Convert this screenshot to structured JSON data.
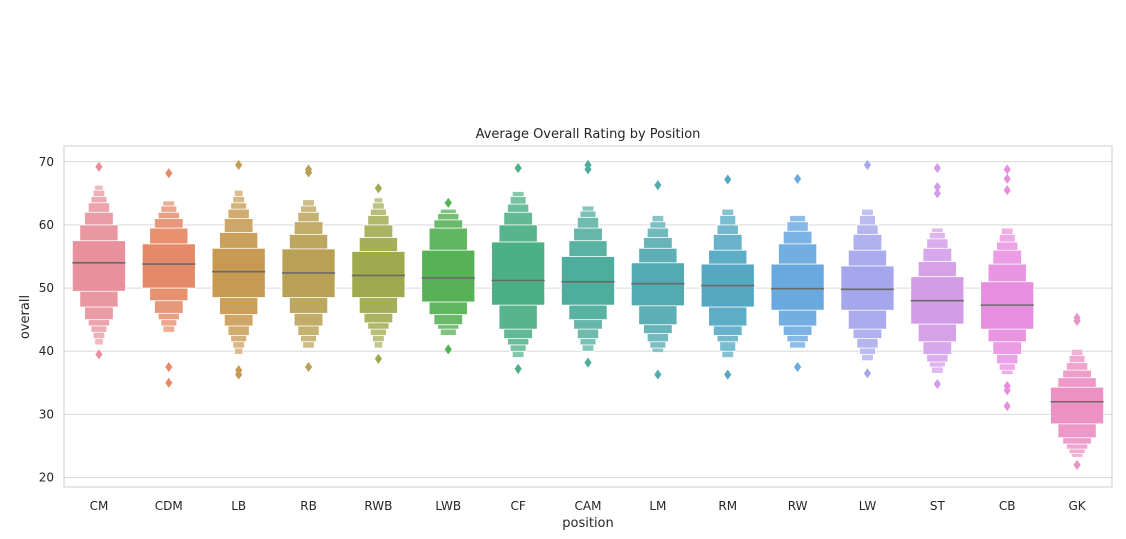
{
  "chart_data": {
    "type": "boxenplot",
    "title": "Average Overall Rating by Position",
    "xlabel": "position",
    "ylabel": "overall",
    "ylim": [
      18.5,
      72.5
    ],
    "yticks": [
      20,
      30,
      40,
      50,
      60,
      70
    ],
    "grid": true,
    "categories": [
      {
        "name": "CM",
        "color": "#e8909b",
        "median": 54.0,
        "boxes": [
          [
            49.5,
            57.5
          ],
          [
            47,
            60
          ],
          [
            45,
            62
          ],
          [
            44,
            63.5
          ],
          [
            43,
            64.5
          ],
          [
            42,
            65.5
          ],
          [
            41,
            66.3
          ]
        ],
        "outliers": [
          69.2,
          39.5
        ]
      },
      {
        "name": "CDM",
        "color": "#e58a68",
        "median": 53.8,
        "boxes": [
          [
            50,
            57
          ],
          [
            48,
            59.5
          ],
          [
            46,
            61
          ],
          [
            45,
            62
          ],
          [
            44,
            63
          ],
          [
            43,
            63.8
          ]
        ],
        "outliers": [
          68.2,
          37.5,
          35.0
        ]
      },
      {
        "name": "LB",
        "color": "#c79a52",
        "median": 52.6,
        "boxes": [
          [
            48.5,
            56.3
          ],
          [
            45.8,
            58.8
          ],
          [
            44,
            61
          ],
          [
            42.5,
            62.5
          ],
          [
            41.5,
            63.5
          ],
          [
            40.5,
            64.5
          ],
          [
            39.5,
            65.5
          ]
        ],
        "outliers": [
          69.5,
          37.0,
          36.3
        ]
      },
      {
        "name": "RB",
        "color": "#b8a154",
        "median": 52.4,
        "boxes": [
          [
            48.5,
            56.2
          ],
          [
            46,
            58.5
          ],
          [
            44,
            60.5
          ],
          [
            42.5,
            62
          ],
          [
            41.5,
            63
          ],
          [
            40.5,
            64
          ]
        ],
        "outliers": [
          68.8,
          68.3,
          37.5
        ]
      },
      {
        "name": "RWB",
        "color": "#9fa94d",
        "median": 52.0,
        "boxes": [
          [
            48.5,
            55.8
          ],
          [
            46,
            58
          ],
          [
            44.5,
            60
          ],
          [
            43.5,
            61.5
          ],
          [
            42.5,
            62.5
          ],
          [
            41.5,
            63.5
          ],
          [
            40.5,
            64.3
          ]
        ],
        "outliers": [
          65.8,
          38.8
        ]
      },
      {
        "name": "LWB",
        "color": "#57b157",
        "median": 51.6,
        "boxes": [
          [
            47.8,
            56.0
          ],
          [
            45.8,
            59.5
          ],
          [
            44.2,
            60.8
          ],
          [
            43.5,
            61.8
          ],
          [
            42.5,
            62.5
          ]
        ],
        "outliers": [
          63.5,
          40.3
        ]
      },
      {
        "name": "CF",
        "color": "#4caf86",
        "median": 51.2,
        "boxes": [
          [
            47.3,
            57.3
          ],
          [
            43.5,
            60
          ],
          [
            42,
            62
          ],
          [
            41,
            63.3
          ],
          [
            40,
            64.5
          ],
          [
            39,
            65.3
          ]
        ],
        "outliers": [
          69.0,
          37.2
        ]
      },
      {
        "name": "CAM",
        "color": "#4fad9d",
        "median": 51.0,
        "boxes": [
          [
            47.3,
            55
          ],
          [
            45,
            57.5
          ],
          [
            43.5,
            59.5
          ],
          [
            42,
            61.2
          ],
          [
            41,
            62.2
          ],
          [
            40,
            63
          ]
        ],
        "outliers": [
          69.5,
          68.8,
          38.2
        ]
      },
      {
        "name": "LM",
        "color": "#52abb0",
        "median": 50.7,
        "boxes": [
          [
            47.2,
            54
          ],
          [
            44.2,
            56.3
          ],
          [
            42.8,
            58
          ],
          [
            41.5,
            59.5
          ],
          [
            40.5,
            60.5
          ],
          [
            39.8,
            61.5
          ]
        ],
        "outliers": [
          66.3,
          36.3
        ]
      },
      {
        "name": "RM",
        "color": "#54a8c2",
        "median": 50.4,
        "boxes": [
          [
            47,
            53.8
          ],
          [
            44,
            56
          ],
          [
            42.5,
            58.5
          ],
          [
            41.5,
            60
          ],
          [
            40,
            61.5
          ],
          [
            39,
            62.5
          ]
        ],
        "outliers": [
          67.2,
          36.3
        ]
      },
      {
        "name": "RW",
        "color": "#6aa9e0",
        "median": 49.9,
        "boxes": [
          [
            46.5,
            53.8
          ],
          [
            44,
            57
          ],
          [
            42.5,
            59
          ],
          [
            41.5,
            60.5
          ],
          [
            40.5,
            61.5
          ]
        ],
        "outliers": [
          67.3,
          37.5
        ]
      },
      {
        "name": "LW",
        "color": "#a6a6ec",
        "median": 49.8,
        "boxes": [
          [
            46.5,
            53.5
          ],
          [
            43.5,
            56
          ],
          [
            42,
            58.5
          ],
          [
            40.5,
            60
          ],
          [
            39.5,
            61.5
          ],
          [
            38.5,
            62.5
          ]
        ],
        "outliers": [
          69.5,
          36.5
        ]
      },
      {
        "name": "ST",
        "color": "#d29ce8",
        "median": 48.0,
        "boxes": [
          [
            44.3,
            51.8
          ],
          [
            41.5,
            54.2
          ],
          [
            39.5,
            56.3
          ],
          [
            38.3,
            57.8
          ],
          [
            37.5,
            58.8
          ],
          [
            36.5,
            59.5
          ]
        ],
        "outliers": [
          69.0,
          66.0,
          65.0,
          34.8
        ]
      },
      {
        "name": "CB",
        "color": "#e88ee0",
        "median": 47.3,
        "boxes": [
          [
            43.5,
            51
          ],
          [
            41.5,
            53.8
          ],
          [
            39.5,
            56
          ],
          [
            38,
            57.3
          ],
          [
            37,
            58.5
          ],
          [
            36.3,
            59.5
          ]
        ],
        "outliers": [
          68.8,
          67.3,
          65.5,
          34.5,
          33.8,
          31.3
        ]
      },
      {
        "name": "GK",
        "color": "#ec91c4",
        "median": 32.0,
        "boxes": [
          [
            28.5,
            34.3
          ],
          [
            26.3,
            35.8
          ],
          [
            25.3,
            37.0
          ],
          [
            24.5,
            38.2
          ],
          [
            23.8,
            39.3
          ],
          [
            23.2,
            40.3
          ]
        ],
        "outliers": [
          45.3,
          44.8,
          22.0
        ]
      }
    ]
  }
}
